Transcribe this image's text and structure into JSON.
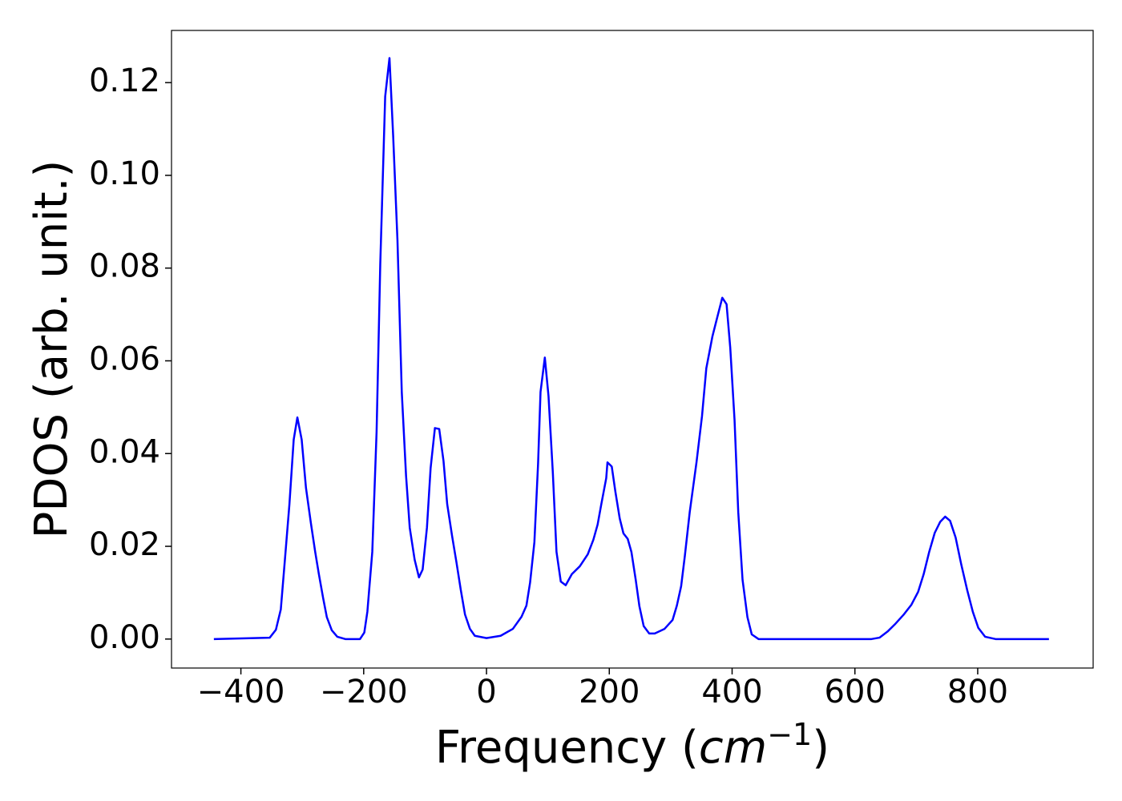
{
  "chart_data": {
    "type": "line",
    "ylabel": "PDOS (arb. unit.)",
    "xlabel": [
      "Frequency (",
      "cm",
      "−1",
      ")"
    ],
    "color": "#0000ff",
    "x": [
      -444,
      -353,
      -343,
      -335,
      -329,
      -321,
      -314,
      -308,
      -301,
      -294,
      -286,
      -279,
      -273,
      -266,
      -260,
      -252,
      -243,
      -230,
      -206,
      -199,
      -194,
      -186,
      -179,
      -173,
      -165,
      -158,
      -152,
      -145,
      -138,
      -131,
      -125,
      -117,
      -110,
      -104,
      -97,
      -91,
      -84,
      -77,
      -70,
      -64,
      -56,
      -49,
      -42,
      -35,
      -27,
      -19,
      0,
      23,
      43,
      57,
      65,
      71,
      78,
      84,
      88,
      95,
      101,
      108,
      114,
      121,
      129,
      139,
      152,
      165,
      174,
      181,
      187,
      195,
      197,
      204,
      210,
      217,
      223,
      230,
      236,
      243,
      249,
      256,
      265,
      274,
      290,
      303,
      310,
      317,
      323,
      331,
      342,
      351,
      358,
      368,
      377,
      384,
      391,
      397,
      404,
      410,
      417,
      425,
      432,
      443,
      627,
      640,
      653,
      666,
      679,
      692,
      703,
      712,
      721,
      730,
      739,
      747,
      755,
      764,
      773,
      783,
      792,
      801,
      812,
      829,
      916
    ],
    "values": [
      0,
      0.0003,
      0.002,
      0.0064,
      0.016,
      0.029,
      0.043,
      0.0478,
      0.043,
      0.0326,
      0.025,
      0.0188,
      0.014,
      0.0088,
      0.0047,
      0.0019,
      0.0005,
      0,
      0,
      0.0014,
      0.0059,
      0.0188,
      0.0447,
      0.0809,
      0.117,
      0.1253,
      0.1085,
      0.086,
      0.0533,
      0.0352,
      0.024,
      0.0171,
      0.0133,
      0.015,
      0.024,
      0.0369,
      0.0455,
      0.0453,
      0.0384,
      0.0291,
      0.0222,
      0.0166,
      0.0107,
      0.0053,
      0.0022,
      0.0007,
      0.0002,
      0.0007,
      0.0022,
      0.0048,
      0.0072,
      0.0122,
      0.0209,
      0.0378,
      0.0533,
      0.0607,
      0.0524,
      0.036,
      0.0188,
      0.0124,
      0.0116,
      0.014,
      0.0157,
      0.0183,
      0.0214,
      0.0247,
      0.0291,
      0.0347,
      0.0381,
      0.0372,
      0.0317,
      0.026,
      0.0228,
      0.0216,
      0.0188,
      0.0128,
      0.0071,
      0.0028,
      0.0012,
      0.0012,
      0.0022,
      0.0041,
      0.0072,
      0.0114,
      0.0179,
      0.0274,
      0.0381,
      0.0481,
      0.0584,
      0.0653,
      0.07,
      0.0736,
      0.0722,
      0.0628,
      0.0472,
      0.0274,
      0.0128,
      0.0047,
      0.001,
      0,
      0,
      0.0003,
      0.0016,
      0.0033,
      0.0052,
      0.0074,
      0.0102,
      0.014,
      0.0188,
      0.0229,
      0.0253,
      0.0264,
      0.0255,
      0.0219,
      0.0162,
      0.0105,
      0.0059,
      0.0024,
      0.0005,
      0,
      0
    ],
    "xlim": [
      -513,
      988
    ],
    "ylim": [
      -0.00625,
      0.13125
    ],
    "xticks": [
      {
        "value": -400,
        "label": "−400"
      },
      {
        "value": -200,
        "label": "−200"
      },
      0,
      200,
      400,
      600,
      800
    ],
    "yticks": [
      {
        "value": 0,
        "label": "0.00"
      },
      0.02,
      0.04,
      0.06,
      0.08,
      {
        "value": 0.1,
        "label": "0.10"
      },
      0.12
    ],
    "grid": false
  }
}
